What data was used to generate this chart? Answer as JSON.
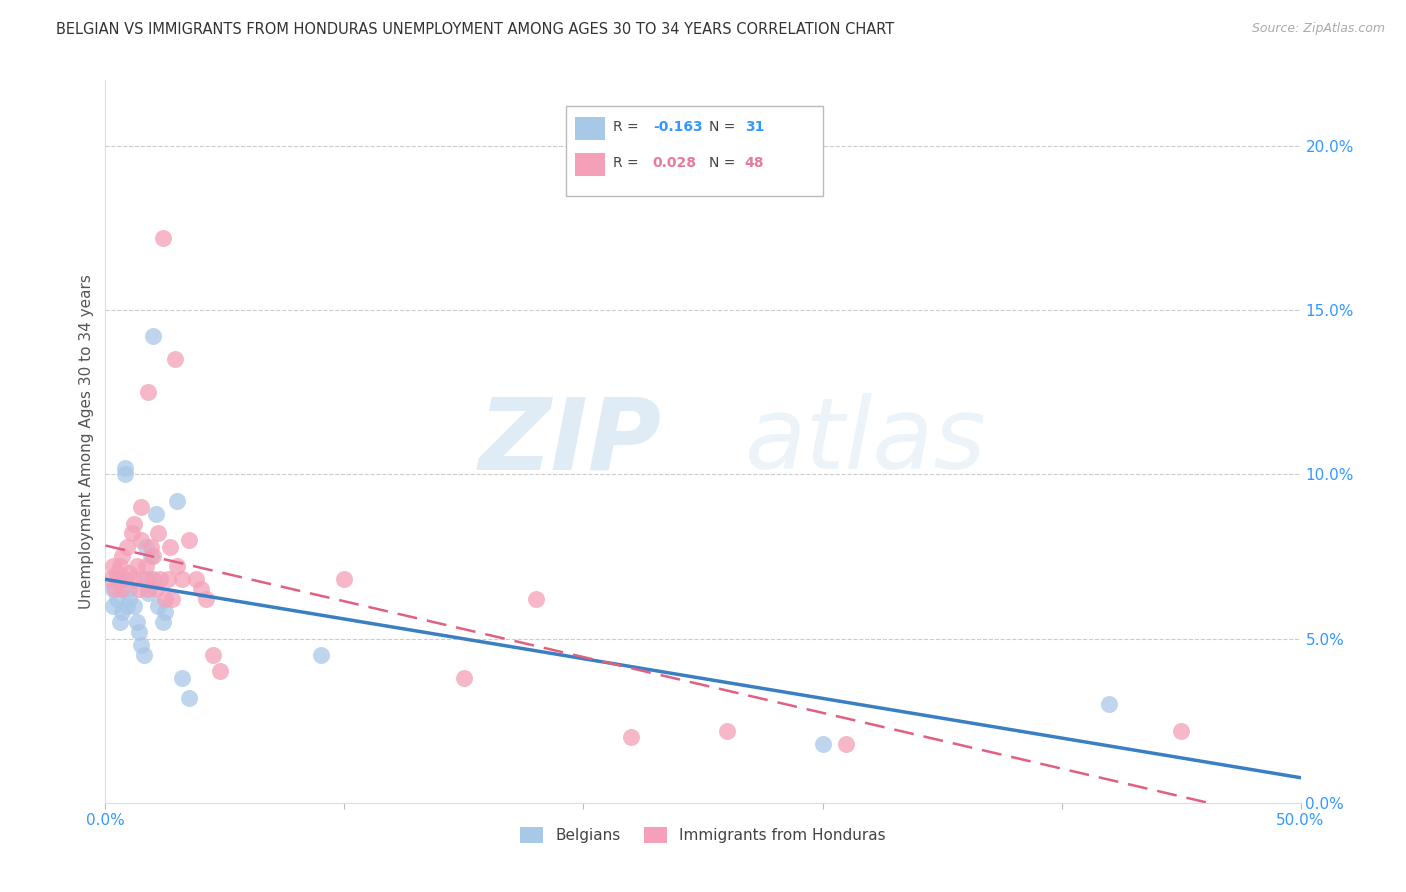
{
  "title": "BELGIAN VS IMMIGRANTS FROM HONDURAS UNEMPLOYMENT AMONG AGES 30 TO 34 YEARS CORRELATION CHART",
  "source": "Source: ZipAtlas.com",
  "ylabel": "Unemployment Among Ages 30 to 34 years",
  "xlim": [
    0.0,
    0.5
  ],
  "ylim": [
    0.0,
    0.22
  ],
  "xticks": [
    0.0,
    0.1,
    0.2,
    0.3,
    0.4,
    0.5
  ],
  "xticklabels": [
    "0.0%",
    "",
    "",
    "",
    "",
    "50.0%"
  ],
  "yticks_right": [
    0.0,
    0.05,
    0.1,
    0.15,
    0.2
  ],
  "yticklabels_right": [
    "0.0%",
    "5.0%",
    "10.0%",
    "15.0%",
    "20.0%"
  ],
  "belgian_color": "#a8c8e8",
  "honduran_color": "#f4a0b8",
  "belgian_line_color": "#3a7fc1",
  "honduran_line_color": "#e06080",
  "legend_R_belgian": "-0.163",
  "legend_N_belgian": "31",
  "legend_R_honduran": "0.028",
  "legend_N_honduran": "48",
  "legend_label_belgian": "Belgians",
  "legend_label_honduran": "Immigrants from Honduras",
  "watermark_zip": "ZIP",
  "watermark_atlas": "atlas",
  "belgians_x": [
    0.003,
    0.003,
    0.005,
    0.005,
    0.006,
    0.007,
    0.008,
    0.008,
    0.009,
    0.01,
    0.01,
    0.012,
    0.013,
    0.014,
    0.015,
    0.016,
    0.017,
    0.018,
    0.018,
    0.019,
    0.02,
    0.021,
    0.022,
    0.024,
    0.025,
    0.03,
    0.032,
    0.035,
    0.09,
    0.3,
    0.42
  ],
  "belgians_y": [
    0.065,
    0.06,
    0.068,
    0.062,
    0.055,
    0.058,
    0.1,
    0.102,
    0.06,
    0.065,
    0.062,
    0.06,
    0.055,
    0.052,
    0.048,
    0.045,
    0.078,
    0.064,
    0.068,
    0.075,
    0.142,
    0.088,
    0.06,
    0.055,
    0.058,
    0.092,
    0.038,
    0.032,
    0.045,
    0.018,
    0.03
  ],
  "hondurans_x": [
    0.002,
    0.003,
    0.004,
    0.005,
    0.006,
    0.007,
    0.007,
    0.008,
    0.009,
    0.01,
    0.011,
    0.012,
    0.012,
    0.013,
    0.014,
    0.015,
    0.015,
    0.016,
    0.017,
    0.018,
    0.018,
    0.019,
    0.02,
    0.02,
    0.021,
    0.022,
    0.023,
    0.024,
    0.025,
    0.026,
    0.027,
    0.028,
    0.029,
    0.03,
    0.032,
    0.035,
    0.038,
    0.04,
    0.042,
    0.045,
    0.048,
    0.1,
    0.15,
    0.18,
    0.22,
    0.26,
    0.31,
    0.45
  ],
  "hondurans_y": [
    0.068,
    0.072,
    0.065,
    0.07,
    0.072,
    0.065,
    0.075,
    0.068,
    0.078,
    0.07,
    0.082,
    0.068,
    0.085,
    0.072,
    0.065,
    0.08,
    0.09,
    0.068,
    0.072,
    0.125,
    0.065,
    0.078,
    0.068,
    0.075,
    0.065,
    0.082,
    0.068,
    0.172,
    0.062,
    0.068,
    0.078,
    0.062,
    0.135,
    0.072,
    0.068,
    0.08,
    0.068,
    0.065,
    0.062,
    0.045,
    0.04,
    0.068,
    0.038,
    0.062,
    0.02,
    0.022,
    0.018,
    0.022
  ]
}
